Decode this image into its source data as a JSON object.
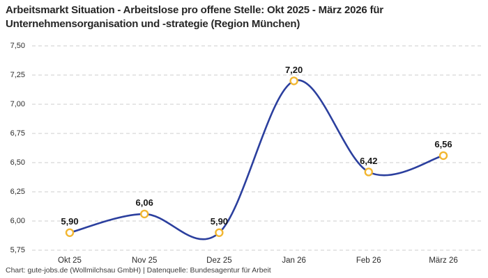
{
  "title": {
    "line1": "Arbeitsmarkt Situation - Arbeitslose pro offene Stelle: Okt 2025 - März 2026 für",
    "line2": "Unternehmensorganisation und -strategie (Region München)"
  },
  "footer": "Chart: gute-jobs.de (Wollmilchsau GmbH) | Datenquelle: Bundesagentur für Arbeit",
  "chart_data": {
    "type": "line",
    "title": "Arbeitsmarkt Situation - Arbeitslose pro offene Stelle: Okt 2025 - März 2026 für Unternehmensorganisation und -strategie (Region München)",
    "categories": [
      "Okt 25",
      "Nov 25",
      "Dez 25",
      "Jan 26",
      "Feb 26",
      "März 26"
    ],
    "series": [
      {
        "name": "Arbeitslose pro offene Stelle",
        "values": [
          5.9,
          6.06,
          5.9,
          7.2,
          6.42,
          6.56
        ],
        "value_labels": [
          "5,90",
          "6,06",
          "5,90",
          "7,20",
          "6,42",
          "6,56"
        ]
      }
    ],
    "xlabel": "",
    "ylabel": "",
    "ylim": [
      5.75,
      7.5
    ],
    "y_tick_values": [
      7.5,
      7.25,
      7.0,
      6.75,
      6.5,
      6.25,
      6.0,
      5.75
    ],
    "y_tick_labels": [
      "7,50",
      "7,25",
      "7,00",
      "6,75",
      "6,50",
      "6,25",
      "6,00",
      "5,75"
    ],
    "grid": "horizontal-dashed",
    "legend": "none",
    "colors": {
      "line": "#2b3f9e",
      "marker_ring": "#f2b630",
      "marker_fill": "#ffffff",
      "gridline": "#cccccc",
      "title_text": "#262626",
      "tick_text": "#2b2b2b",
      "label_text": "#161616",
      "footer_text": "#3c3c3c",
      "background": "#ffffff"
    }
  }
}
